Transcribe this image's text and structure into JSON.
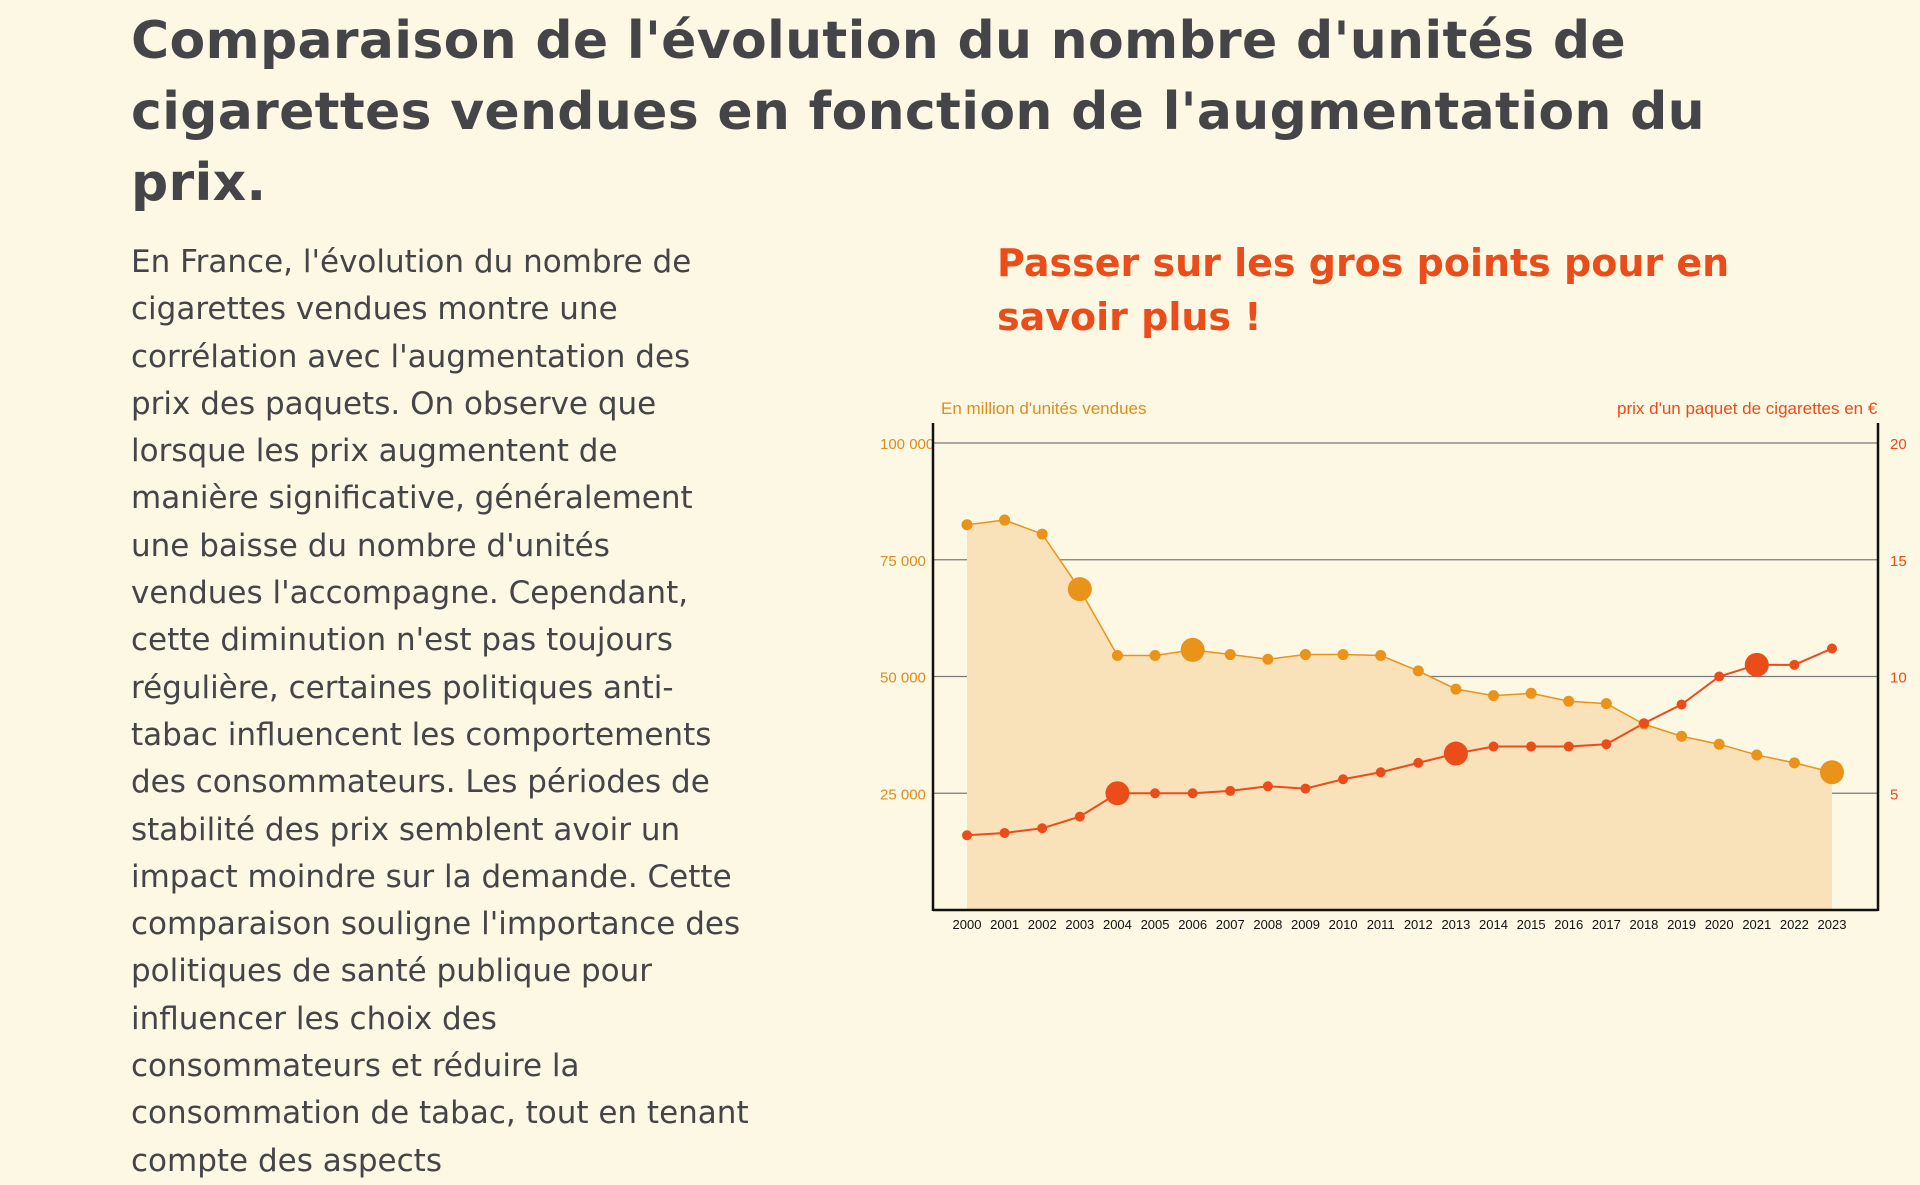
{
  "page": {
    "title": "Comparaison de l'évolution du nombre d'unités de cigarettes vendues en fonction de l'augmentation du prix.",
    "paragraph": "En France, l'évolution du nombre de cigarettes vendues montre une corrélation avec l'augmentation des prix des paquets. On observe que lorsque les prix augmentent de manière significative, généralement une baisse du nombre d'unités vendues l'accompagne. Cependant, cette diminution n'est pas toujours régulière, certaines politiques anti-tabac influencent les comportements des consommateurs. Les périodes de stabilité des prix semblent avoir un impact moindre sur la demande. Cette comparaison souligne l'importance des politiques de santé publique pour influencer les choix des consommateurs et réduire la consommation de tabac, tout en tenant compte des aspects",
    "hint": "Passer sur les gros points pour en savoir plus !"
  },
  "colors": {
    "background": "#fcf8e3",
    "text": "#454549",
    "accent_red": "#ea4c1a",
    "sales_orange": "#e9931a",
    "area_fill": "#f9e2b9",
    "left_axis_label": "#dd8c1f"
  },
  "chart_data": {
    "type": "line",
    "x": [
      2000,
      2001,
      2002,
      2003,
      2004,
      2005,
      2006,
      2007,
      2008,
      2009,
      2010,
      2011,
      2012,
      2013,
      2014,
      2015,
      2016,
      2017,
      2018,
      2019,
      2020,
      2021,
      2022,
      2023
    ],
    "x_tick_labels": [
      "2000",
      "2001",
      "2002",
      "2003",
      "2004",
      "2005",
      "2006",
      "2007",
      "2008",
      "2009",
      "2010",
      "2011",
      "2012",
      "2013",
      "2014",
      "2015",
      "2016",
      "2017",
      "2018",
      "2019",
      "2020",
      "2021",
      "2022",
      "2023"
    ],
    "y_left_label": "En million d'unités vendues",
    "y_left_ticks": [
      "25 000",
      "50 000",
      "75 000",
      "100 000"
    ],
    "y_left_tick_values": [
      25000,
      50000,
      75000,
      100000
    ],
    "y_left_lim": [
      0,
      105000
    ],
    "y_right_label": "prix d'un paquet de cigarettes en €",
    "y_right_ticks": [
      "5",
      "10",
      "15",
      "20"
    ],
    "y_right_tick_values": [
      5,
      10,
      15,
      20
    ],
    "y_right_lim": [
      0,
      21
    ],
    "grid": true,
    "series": [
      {
        "axis": "left",
        "style": "area",
        "values": [
          82500,
          83500,
          80500,
          68700,
          54500,
          54500,
          55700,
          54700,
          53700,
          54700,
          54700,
          54500,
          51200,
          47300,
          45900,
          46400,
          44700,
          44200,
          39800,
          37200,
          35500,
          33200,
          31500,
          29500
        ],
        "highlight_years": [
          2003,
          2006,
          2023
        ]
      },
      {
        "axis": "right",
        "style": "line",
        "values": [
          3.2,
          3.3,
          3.5,
          4.0,
          5.0,
          5.0,
          5.0,
          5.1,
          5.3,
          5.2,
          5.6,
          5.9,
          6.3,
          6.7,
          7.0,
          7.0,
          7.0,
          7.1,
          8.0,
          8.8,
          10.0,
          10.5,
          10.5,
          11.2
        ],
        "highlight_years": [
          2004,
          2013,
          2021
        ]
      }
    ]
  }
}
